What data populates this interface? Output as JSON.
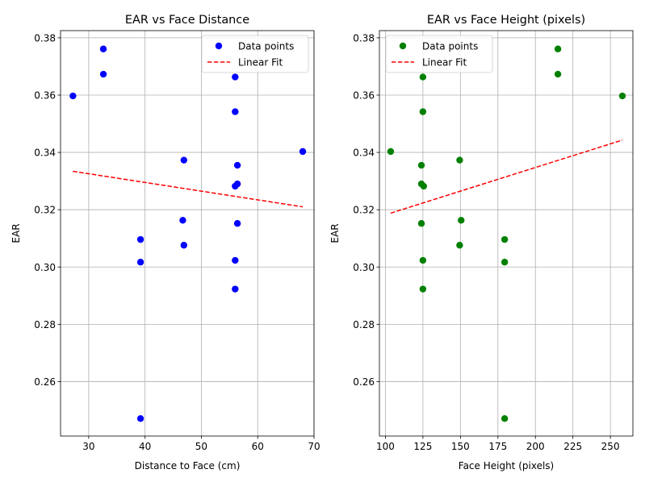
{
  "chart_data": [
    {
      "type": "scatter",
      "title": "EAR vs Face Distance",
      "xlabel": "Distance to Face (cm)",
      "ylabel": "EAR",
      "xlim": [
        25,
        70
      ],
      "ylim": [
        0.241,
        0.3825
      ],
      "xticks": [
        30,
        40,
        50,
        60,
        70
      ],
      "yticks": [
        0.26,
        0.28,
        0.3,
        0.32,
        0.34,
        0.36,
        0.38
      ],
      "ytick_labels": [
        "0.26",
        "0.28",
        "0.30",
        "0.32",
        "0.34",
        "0.36",
        "0.38"
      ],
      "xtick_labels": [
        "30",
        "40",
        "50",
        "60",
        "70"
      ],
      "grid": true,
      "legend_position": "top-right",
      "series": [
        {
          "name": "Data points",
          "kind": "scatter",
          "color": "#0000ff",
          "points": [
            [
              27.2,
              0.3597
            ],
            [
              32.6,
              0.3761
            ],
            [
              32.6,
              0.3673
            ],
            [
              39.2,
              0.3096
            ],
            [
              39.2,
              0.3017
            ],
            [
              39.2,
              0.2471
            ],
            [
              46.7,
              0.3163
            ],
            [
              46.9,
              0.3373
            ],
            [
              46.9,
              0.3076
            ],
            [
              56.0,
              0.3663
            ],
            [
              56.0,
              0.3542
            ],
            [
              56.0,
              0.3282
            ],
            [
              56.0,
              0.3023
            ],
            [
              56.0,
              0.2923
            ],
            [
              56.4,
              0.3355
            ],
            [
              56.4,
              0.329
            ],
            [
              56.4,
              0.3152
            ],
            [
              68.0,
              0.3403
            ]
          ]
        },
        {
          "name": "Linear Fit",
          "kind": "line",
          "color": "#ff0000",
          "dashed": true,
          "points": [
            [
              27.2,
              0.3334
            ],
            [
              68.0,
              0.321
            ]
          ]
        }
      ]
    },
    {
      "type": "scatter",
      "title": "EAR vs Face Height (pixels)",
      "xlabel": "Face Height (pixels)",
      "ylabel": "EAR",
      "xlim": [
        96,
        265
      ],
      "ylim": [
        0.241,
        0.3825
      ],
      "xticks": [
        100,
        125,
        150,
        175,
        200,
        225,
        250
      ],
      "xtick_labels": [
        "100",
        "125",
        "150",
        "175",
        "200",
        "225",
        "250"
      ],
      "yticks": [
        0.26,
        0.28,
        0.3,
        0.32,
        0.34,
        0.36,
        0.38
      ],
      "ytick_labels": [
        "0.26",
        "0.28",
        "0.30",
        "0.32",
        "0.34",
        "0.36",
        "0.38"
      ],
      "grid": true,
      "legend_position": "top-left",
      "series": [
        {
          "name": "Data points",
          "kind": "scatter",
          "color": "#008000",
          "points": [
            [
              103.5,
              0.3403
            ],
            [
              124.0,
              0.3355
            ],
            [
              124.0,
              0.329
            ],
            [
              124.0,
              0.3152
            ],
            [
              125.0,
              0.3663
            ],
            [
              125.0,
              0.3542
            ],
            [
              125.5,
              0.3282
            ],
            [
              125.0,
              0.3023
            ],
            [
              125.0,
              0.2923
            ],
            [
              149.5,
              0.3373
            ],
            [
              149.5,
              0.3076
            ],
            [
              150.5,
              0.3163
            ],
            [
              179.5,
              0.3096
            ],
            [
              179.5,
              0.3017
            ],
            [
              179.5,
              0.2471
            ],
            [
              215.0,
              0.3761
            ],
            [
              215.0,
              0.3673
            ],
            [
              258.0,
              0.3597
            ]
          ]
        },
        {
          "name": "Linear Fit",
          "kind": "line",
          "color": "#ff0000",
          "dashed": true,
          "points": [
            [
              103.5,
              0.3188
            ],
            [
              258.0,
              0.3443
            ]
          ]
        }
      ]
    }
  ]
}
